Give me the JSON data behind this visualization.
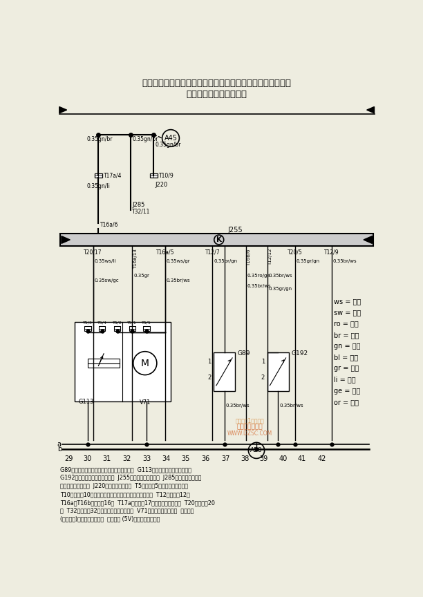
{
  "title_line1": "自动空调电控单元、通风翻板伺服电机、出风口温度传感器、",
  "title_line2": "新鲜空气进气温度传感器",
  "bg_color": "#eeede0",
  "legend_items": [
    [
      "ws",
      "白色"
    ],
    [
      "sw",
      "黑色"
    ],
    [
      "ro",
      "红色"
    ],
    [
      "br",
      "棕色"
    ],
    [
      "gn",
      "绿色"
    ],
    [
      "bl",
      "蓝色"
    ],
    [
      "gr",
      "灰色"
    ],
    [
      "li",
      "紫色"
    ],
    [
      "ge",
      "黄色"
    ],
    [
      "or",
      "橙色"
    ]
  ],
  "bottom_labels": [
    "29",
    "30",
    "31",
    "32",
    "33",
    "34",
    "35",
    "36",
    "37",
    "38",
    "39",
    "40",
    "41",
    "42"
  ],
  "bottom_x": [
    30,
    65,
    100,
    138,
    175,
    212,
    248,
    285,
    322,
    358,
    394,
    430,
    465,
    502
  ],
  "footnote_lines": [
    "G89－新鲜空气进气温度传感器，在仪表板右下  G113－通风翻板伺服电机电位计",
    "G192－出风口温度传感器，脚坑  J255－自动空调电控单元  J285－带显示器的电控",
    "单元，在组合仪表内  J220－发动机电控单元  T5－插头，5孔，在仪表板中后部",
    "T10－插头，10孔，橙色，在插头保护壳体内，流水槽左侧  T12－插头，12孔",
    "T16a、T16b－插头，16孔  T17a－插头，17孔，在仪表板中后部  T20－插头，20",
    "孔  T32－插头，32孔，蓝色，在组合仪表上  V71－通风翻板伺服电机  ㊄－连接",
    "(转速信号)，在仪表板线束内  ㊉－连接 (5V)，在仪表板线束内"
  ]
}
